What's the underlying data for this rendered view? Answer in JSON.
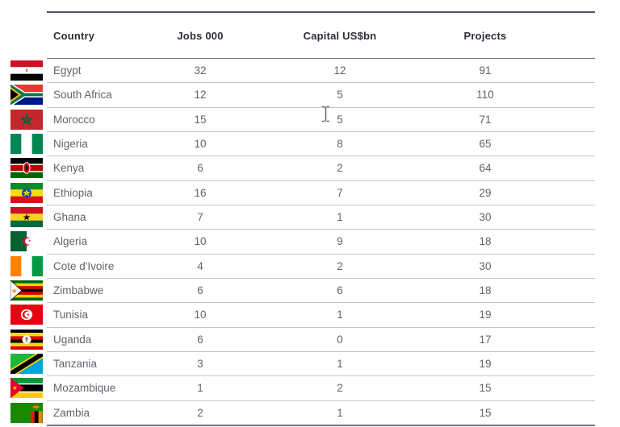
{
  "table": {
    "columns": [
      {
        "label": "Country"
      },
      {
        "label": "Jobs 000"
      },
      {
        "label": "Capital US$bn"
      },
      {
        "label": "Projects"
      }
    ],
    "rows": [
      {
        "country": "Egypt",
        "flag": "egypt",
        "jobs": "32",
        "capital": "12",
        "projects": "91"
      },
      {
        "country": "South Africa",
        "flag": "south-africa",
        "jobs": "12",
        "capital": "5",
        "projects": "110"
      },
      {
        "country": "Morocco",
        "flag": "morocco",
        "jobs": "15",
        "capital": "5",
        "projects": "71"
      },
      {
        "country": "Nigeria",
        "flag": "nigeria",
        "jobs": "10",
        "capital": "8",
        "projects": "65"
      },
      {
        "country": "Kenya",
        "flag": "kenya",
        "jobs": "6",
        "capital": "2",
        "projects": "64"
      },
      {
        "country": "Ethiopia",
        "flag": "ethiopia",
        "jobs": "16",
        "capital": "7",
        "projects": "29"
      },
      {
        "country": "Ghana",
        "flag": "ghana",
        "jobs": "7",
        "capital": "1",
        "projects": "30"
      },
      {
        "country": "Algeria",
        "flag": "algeria",
        "jobs": "10",
        "capital": "9",
        "projects": "18"
      },
      {
        "country": "Cote d'Ivoire",
        "flag": "cote-divoire",
        "jobs": "4",
        "capital": "2",
        "projects": "30"
      },
      {
        "country": "Zimbabwe",
        "flag": "zimbabwe",
        "jobs": "6",
        "capital": "6",
        "projects": "18"
      },
      {
        "country": "Tunisia",
        "flag": "tunisia",
        "jobs": "10",
        "capital": "1",
        "projects": "19"
      },
      {
        "country": "Uganda",
        "flag": "uganda",
        "jobs": "6",
        "capital": "0",
        "projects": "17"
      },
      {
        "country": "Tanzania",
        "flag": "tanzania",
        "jobs": "3",
        "capital": "1",
        "projects": "19"
      },
      {
        "country": "Mozambique",
        "flag": "mozambique",
        "jobs": "1",
        "capital": "2",
        "projects": "15"
      },
      {
        "country": "Zambia",
        "flag": "zambia",
        "jobs": "2",
        "capital": "1",
        "projects": "15"
      }
    ]
  },
  "cursor": {
    "icon": "text-ibeam-cursor"
  },
  "colors": {
    "header_text": "#2e2e38",
    "body_text": "#63636b",
    "border_dark": "#54545e",
    "border_medium": "#74747e",
    "border_light": "#c4c4cc",
    "background": "#ffffff"
  }
}
